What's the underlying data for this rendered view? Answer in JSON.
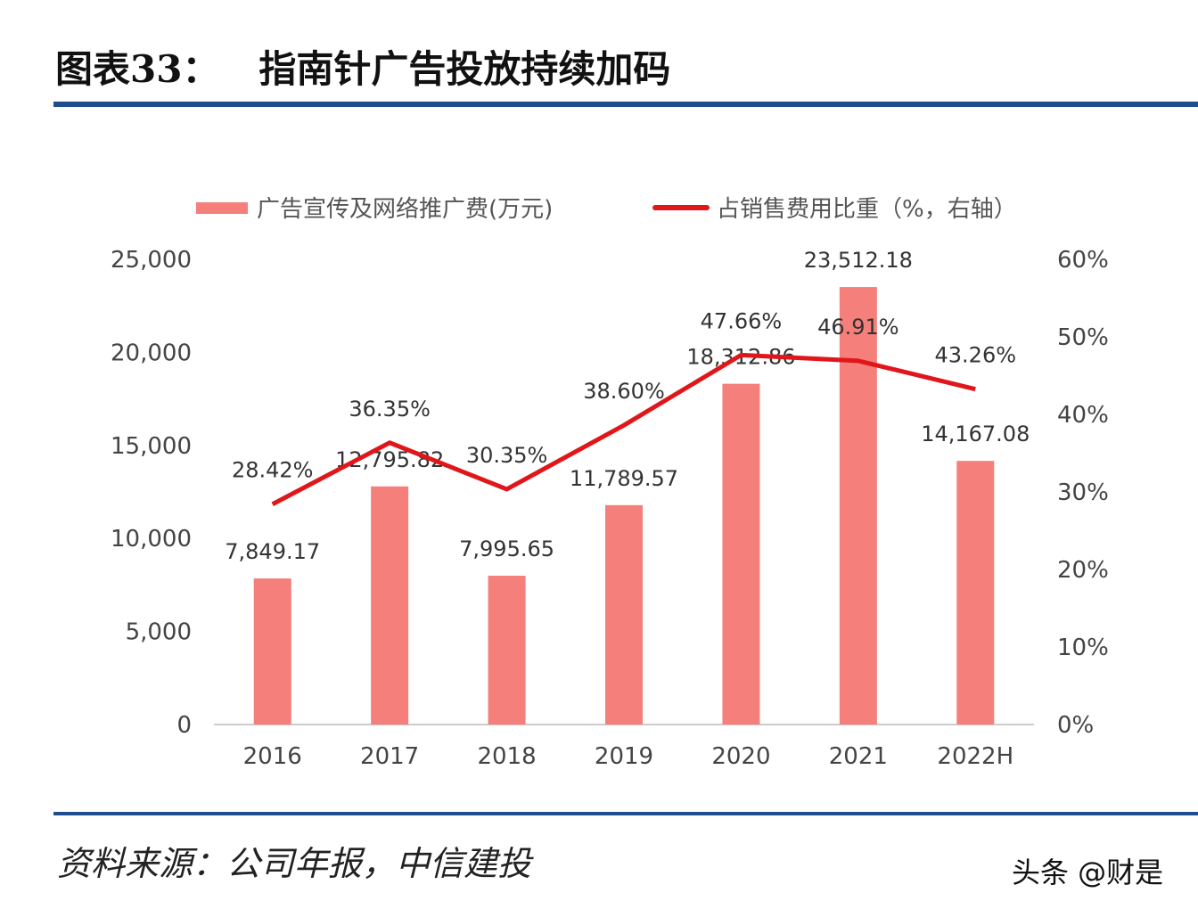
{
  "header": {
    "title": "图表33：   指南针广告投放持续加码"
  },
  "footer": {
    "source": "资料来源：公司年报，中信建投",
    "watermark": "头条 @财是"
  },
  "colors": {
    "bar": "#f47f7b",
    "line": "#e0161a",
    "rule": "#1f4e8c"
  },
  "chart_data": {
    "type": "bar+line",
    "categories": [
      "2016",
      "2017",
      "2018",
      "2019",
      "2020",
      "2021",
      "2022H"
    ],
    "series": [
      {
        "name": "广告宣传及网络推广费(万元)",
        "type": "bar",
        "axis": "left",
        "values": [
          7849.17,
          12795.82,
          7995.65,
          11789.57,
          18312.86,
          23512.18,
          14167.08
        ],
        "labels": [
          "7,849.17",
          "12,795.82",
          "7,995.65",
          "11,789.57",
          "18,312.86",
          "23,512.18",
          "14,167.08"
        ]
      },
      {
        "name": "占销售费用比重（%，右轴）",
        "type": "line",
        "axis": "right",
        "values": [
          28.42,
          36.35,
          30.35,
          38.6,
          47.66,
          46.91,
          43.26
        ],
        "labels": [
          "28.42%",
          "36.35%",
          "30.35%",
          "38.60%",
          "47.66%",
          "46.91%",
          "43.26%"
        ]
      }
    ],
    "y_left": {
      "range": [
        0,
        25000
      ],
      "ticks": [
        "0",
        "5,000",
        "10,000",
        "15,000",
        "20,000",
        "25,000"
      ]
    },
    "y_right": {
      "range": [
        0,
        60
      ],
      "ticks": [
        "0%",
        "10%",
        "20%",
        "30%",
        "40%",
        "50%",
        "60%"
      ]
    },
    "legend": "top",
    "grid": false
  }
}
